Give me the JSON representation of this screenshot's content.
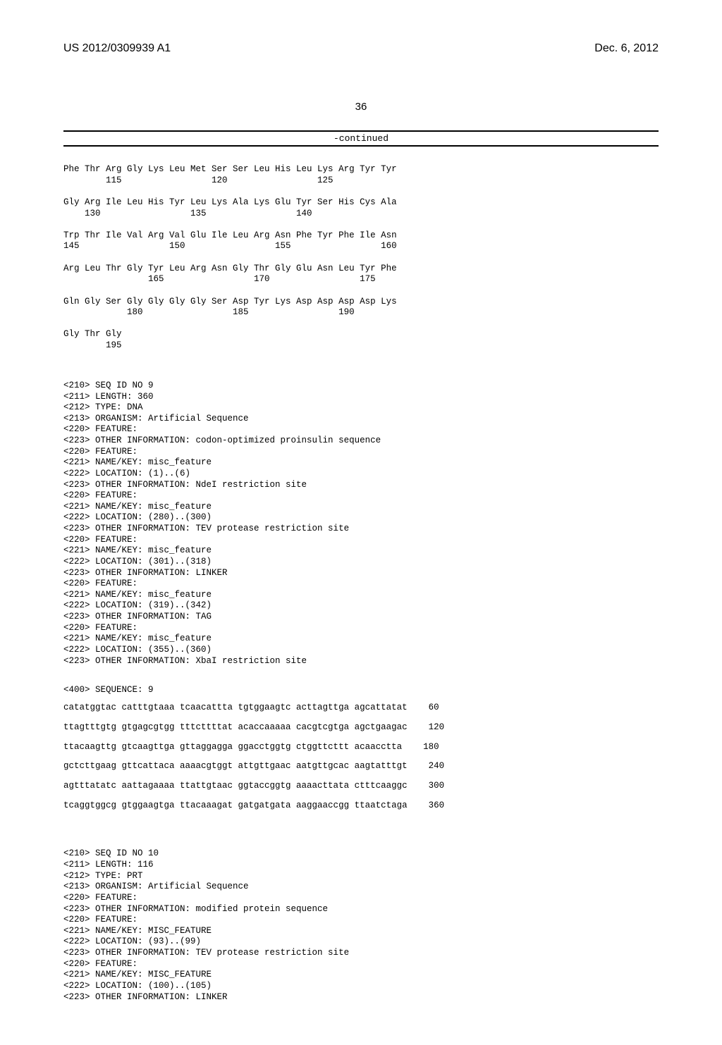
{
  "header": {
    "left": "US 2012/0309939 A1",
    "right": "Dec. 6, 2012"
  },
  "page_number": "36",
  "continued_label": "-continued",
  "protein_rows": [
    {
      "aa": "Phe Thr Arg Gly Lys Leu Met Ser Ser Leu His Leu Lys Arg Tyr Tyr",
      "nums": "        115                 120                 125"
    },
    {
      "aa": "Gly Arg Ile Leu His Tyr Leu Lys Ala Lys Glu Tyr Ser His Cys Ala",
      "nums": "    130                 135                 140"
    },
    {
      "aa": "Trp Thr Ile Val Arg Val Glu Ile Leu Arg Asn Phe Tyr Phe Ile Asn",
      "nums": "145                 150                 155                 160"
    },
    {
      "aa": "Arg Leu Thr Gly Tyr Leu Arg Asn Gly Thr Gly Glu Asn Leu Tyr Phe",
      "nums": "                165                 170                 175"
    },
    {
      "aa": "Gln Gly Ser Gly Gly Gly Gly Ser Asp Tyr Lys Asp Asp Asp Asp Lys",
      "nums": "            180                 185                 190"
    },
    {
      "aa": "Gly Thr Gly",
      "nums": "        195"
    }
  ],
  "seq9": {
    "meta": [
      "<210> SEQ ID NO 9",
      "<211> LENGTH: 360",
      "<212> TYPE: DNA",
      "<213> ORGANISM: Artificial Sequence",
      "<220> FEATURE:",
      "<223> OTHER INFORMATION: codon-optimized proinsulin sequence",
      "<220> FEATURE:",
      "<221> NAME/KEY: misc_feature",
      "<222> LOCATION: (1)..(6)",
      "<223> OTHER INFORMATION: NdeI restriction site",
      "<220> FEATURE:",
      "<221> NAME/KEY: misc_feature",
      "<222> LOCATION: (280)..(300)",
      "<223> OTHER INFORMATION: TEV protease restriction site",
      "<220> FEATURE:",
      "<221> NAME/KEY: misc_feature",
      "<222> LOCATION: (301)..(318)",
      "<223> OTHER INFORMATION: LINKER",
      "<220> FEATURE:",
      "<221> NAME/KEY: misc_feature",
      "<222> LOCATION: (319)..(342)",
      "<223> OTHER INFORMATION: TAG",
      "<220> FEATURE:",
      "<221> NAME/KEY: misc_feature",
      "<222> LOCATION: (355)..(360)",
      "<223> OTHER INFORMATION: XbaI restriction site"
    ],
    "seq_label": "<400> SEQUENCE: 9",
    "rows": [
      {
        "seq": "catatggtac catttgtaaa tcaacattta tgtggaagtc acttagttga agcattatat",
        "pos": "60"
      },
      {
        "seq": "ttagtttgtg gtgagcgtgg tttcttttat acaccaaaaa cacgtcgtga agctgaagac",
        "pos": "120"
      },
      {
        "seq": "ttacaagttg gtcaagttga gttaggagga ggacctggtg ctggttcttt acaacctta",
        "pos": "180"
      },
      {
        "seq": "gctcttgaag gttcattaca aaaacgtggt attgttgaac aatgttgcac aagtatttgt",
        "pos": "240"
      },
      {
        "seq": "agtttatatc aattagaaaa ttattgtaac ggtaccggtg aaaacttata ctttcaaggc",
        "pos": "300"
      },
      {
        "seq": "tcaggtggcg gtggaagtga ttacaaagat gatgatgata aaggaaccgg ttaatctaga",
        "pos": "360"
      }
    ]
  },
  "seq10": {
    "meta": [
      "<210> SEQ ID NO 10",
      "<211> LENGTH: 116",
      "<212> TYPE: PRT",
      "<213> ORGANISM: Artificial Sequence",
      "<220> FEATURE:",
      "<223> OTHER INFORMATION: modified protein sequence",
      "<220> FEATURE:",
      "<221> NAME/KEY: MISC_FEATURE",
      "<222> LOCATION: (93)..(99)",
      "<223> OTHER INFORMATION: TEV protease restriction site",
      "<220> FEATURE:",
      "<221> NAME/KEY: MISC_FEATURE",
      "<222> LOCATION: (100)..(105)",
      "<223> OTHER INFORMATION: LINKER"
    ]
  },
  "styling": {
    "font_mono": "Courier New",
    "font_sans": "Arial",
    "text_color": "#000000",
    "bg_color": "#ffffff",
    "rule_color": "#000000"
  }
}
